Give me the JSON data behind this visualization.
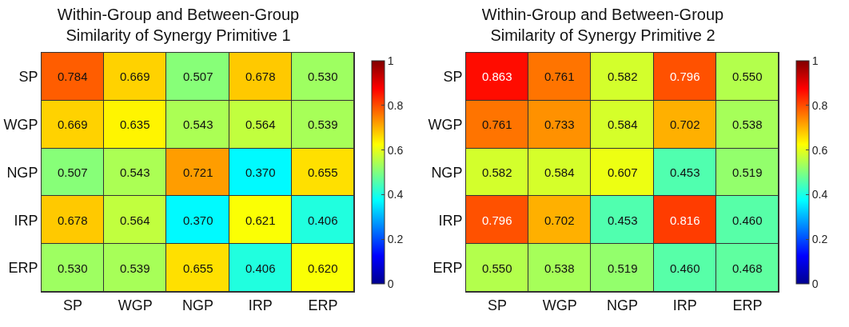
{
  "chart_data": [
    {
      "type": "heatmap",
      "title": "Within-Group and Between-Group\nSimilarity of Synergy Primitive 1",
      "categories": [
        "SP",
        "WGP",
        "NGP",
        "IRP",
        "ERP"
      ],
      "y_categories": [
        "SP",
        "WGP",
        "NGP",
        "IRP",
        "ERP"
      ],
      "cells": [
        [
          0.784,
          0.669,
          0.507,
          0.678,
          0.53
        ],
        [
          0.669,
          0.635,
          0.543,
          0.564,
          0.539
        ],
        [
          0.507,
          0.543,
          0.721,
          0.37,
          0.655
        ],
        [
          0.678,
          0.564,
          0.37,
          0.621,
          0.406
        ],
        [
          0.53,
          0.539,
          0.655,
          0.406,
          0.62
        ]
      ],
      "cell_labels": [
        [
          "0.784",
          "0.669",
          "0.507",
          "0.678",
          "0.530"
        ],
        [
          "0.669",
          "0.635",
          "0.543",
          "0.564",
          "0.539"
        ],
        [
          "0.507",
          "0.543",
          "0.721",
          "0.370",
          "0.655"
        ],
        [
          "0.678",
          "0.564",
          "0.370",
          "0.621",
          "0.406"
        ],
        [
          "0.530",
          "0.539",
          "0.655",
          "0.406",
          "0.620"
        ]
      ],
      "clim": [
        0,
        1
      ],
      "cticks": [
        0,
        0.2,
        0.4,
        0.6,
        0.8,
        1
      ]
    },
    {
      "type": "heatmap",
      "title": "Within-Group and Between-Group\nSimilarity of Synergy Primitive 2",
      "categories": [
        "SP",
        "WGP",
        "NGP",
        "IRP",
        "ERP"
      ],
      "y_categories": [
        "SP",
        "WGP",
        "NGP",
        "IRP",
        "ERP"
      ],
      "cells": [
        [
          0.863,
          0.761,
          0.582,
          0.796,
          0.55
        ],
        [
          0.761,
          0.733,
          0.584,
          0.702,
          0.538
        ],
        [
          0.582,
          0.584,
          0.607,
          0.453,
          0.519
        ],
        [
          0.796,
          0.702,
          0.453,
          0.816,
          0.46
        ],
        [
          0.55,
          0.538,
          0.519,
          0.46,
          0.468
        ]
      ],
      "cell_labels": [
        [
          "0.863",
          "0.761",
          "0.582",
          "0.796",
          "0.550"
        ],
        [
          "0.761",
          "0.733",
          "0.584",
          "0.702",
          "0.538"
        ],
        [
          "0.582",
          "0.584",
          "0.607",
          "0.453",
          "0.519"
        ],
        [
          "0.796",
          "0.702",
          "0.453",
          "0.816",
          "0.460"
        ],
        [
          "0.550",
          "0.538",
          "0.519",
          "0.460",
          "0.468"
        ]
      ],
      "clim": [
        0,
        1
      ],
      "cticks": [
        0,
        0.2,
        0.4,
        0.6,
        0.8,
        1
      ]
    }
  ]
}
